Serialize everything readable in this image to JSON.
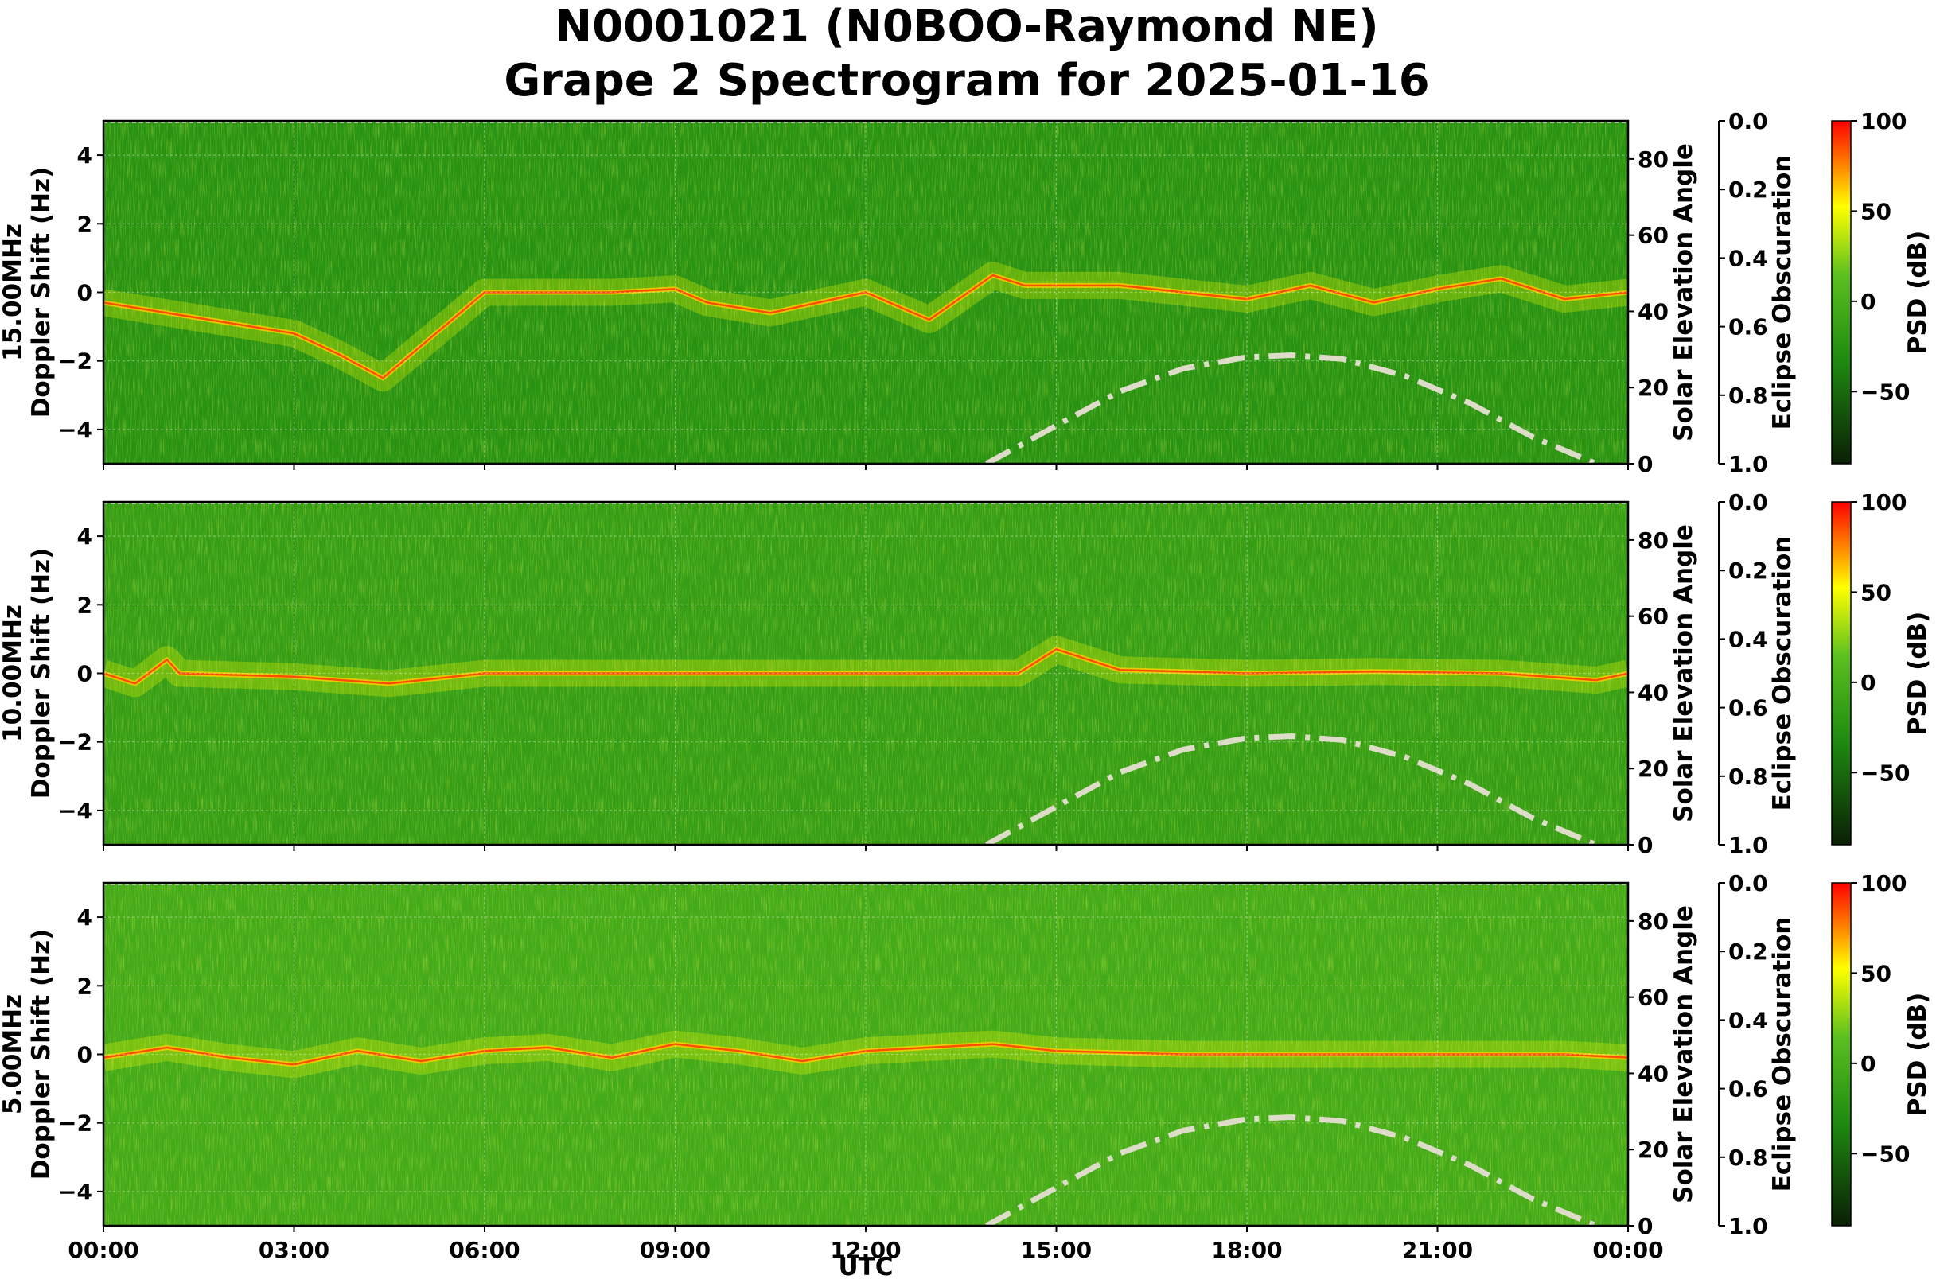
{
  "chart_data": {
    "type": "heatmap",
    "title": [
      "N0001021 (N0BOO-Raymond NE)",
      "Grape 2 Spectrogram for 2025-01-16"
    ],
    "xlabel": "UTC",
    "x_ticks": [
      "00:00",
      "03:00",
      "06:00",
      "09:00",
      "12:00",
      "15:00",
      "18:00",
      "21:00",
      "00:00"
    ],
    "xlim_hours": [
      0,
      24
    ],
    "ylabel_doppler": "Doppler Shift (Hz)",
    "ylim_doppler": [
      -5,
      5
    ],
    "doppler_ticks": [
      "4",
      "2",
      "0",
      "−2",
      "−4"
    ],
    "ylabel_solar": "Solar Elevation Angle",
    "ylim_solar": [
      0,
      90
    ],
    "solar_ticks": [
      "80",
      "60",
      "40",
      "20",
      "0"
    ],
    "ylabel_eclipse": "Eclipse Obscuration",
    "eclipse_ticks": [
      "0.0",
      "0.2",
      "0.4",
      "0.6",
      "0.8",
      "1.0"
    ],
    "colorbar_label": "PSD (dB)",
    "colorbar_ticks": [
      "100",
      "50",
      "0",
      "−50"
    ],
    "colorbar_range_db": [
      -90,
      100
    ],
    "colors": {
      "low": "#0a1f05",
      "mid": "#1e8a10",
      "high_yellow": "#ffff00",
      "max": "#ff0000",
      "solar_curve": "#dcdcc8"
    },
    "solar_elevation": {
      "hours": [
        13.9,
        15,
        16,
        17,
        18,
        18.7,
        19.5,
        20.5,
        21.5,
        22.5,
        23.5
      ],
      "degrees": [
        0,
        10,
        19,
        25,
        28,
        28.5,
        27.5,
        23,
        16,
        7,
        0
      ]
    },
    "panels": [
      {
        "name": "15.00MHz",
        "label": "15.00MHz",
        "background_db": -25,
        "trace_points_hours": [
          0,
          1,
          2,
          3,
          3.7,
          4.4,
          6,
          8,
          9,
          9.5,
          10.5,
          12,
          13,
          14,
          14.5,
          16,
          18,
          19,
          20,
          21,
          22,
          23,
          24
        ],
        "trace_points_hz": [
          -0.3,
          -0.6,
          -0.9,
          -1.2,
          -1.8,
          -2.5,
          0,
          0,
          0.1,
          -0.3,
          -0.6,
          0,
          -0.8,
          0.5,
          0.2,
          0.2,
          -0.2,
          0.2,
          -0.3,
          0.1,
          0.4,
          -0.2,
          0
        ]
      },
      {
        "name": "10.00MHz",
        "label": "10.00MHz",
        "background_db": -15,
        "trace_points_hours": [
          0,
          0.5,
          1,
          1.2,
          3,
          4.5,
          6,
          9,
          12,
          14.4,
          15,
          16,
          18,
          20,
          22,
          23.5,
          24
        ],
        "trace_points_hz": [
          0,
          -0.3,
          0.4,
          0,
          -0.1,
          -0.3,
          0,
          0,
          0,
          0,
          0.7,
          0.1,
          0.0,
          0.05,
          0.0,
          -0.2,
          0
        ]
      },
      {
        "name": "5.00MHz",
        "label": "5.00MHz",
        "background_db": -5,
        "trace_points_hours": [
          0,
          1,
          2,
          3,
          4,
          5,
          6,
          7,
          8,
          9,
          10,
          11,
          12,
          13,
          14,
          15,
          17,
          20,
          23,
          24
        ],
        "trace_points_hz": [
          -0.1,
          0.2,
          -0.1,
          -0.3,
          0.1,
          -0.2,
          0.1,
          0.2,
          -0.1,
          0.3,
          0.1,
          -0.2,
          0.1,
          0.2,
          0.3,
          0.1,
          0.0,
          0.0,
          0.0,
          -0.1
        ]
      }
    ]
  }
}
